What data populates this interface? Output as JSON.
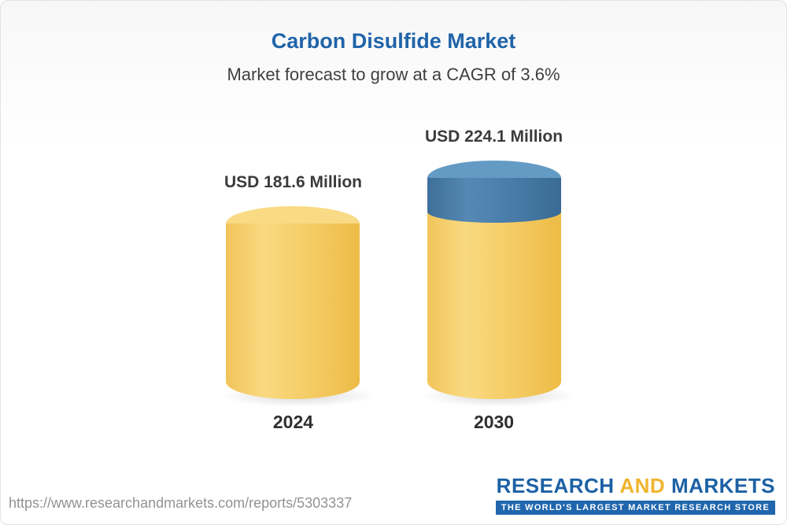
{
  "chart_data": {
    "type": "bar",
    "title": "Carbon Disulfide Market",
    "subtitle": "Market forecast to grow at a CAGR of 3.6%",
    "categories": [
      "2024",
      "2030"
    ],
    "values": [
      181.6,
      224.1
    ],
    "value_labels": [
      "USD 181.6 Million",
      "USD 224.1 Million"
    ],
    "unit": "USD Million",
    "cagr_percent": 3.6,
    "ylim": [
      0,
      224.1
    ],
    "grid": false,
    "legend": "none",
    "colors": {
      "base_segment": "#F6CE68",
      "growth_segment": "#4E81AE",
      "title_accent": "#2064A9"
    }
  },
  "footer": {
    "url": "https://www.researchandmarkets.com/reports/5303337",
    "logo": {
      "research": "RESEARCH",
      "and": "AND",
      "markets": "MARKETS",
      "tagline": "THE WORLD'S LARGEST MARKET RESEARCH STORE"
    }
  }
}
